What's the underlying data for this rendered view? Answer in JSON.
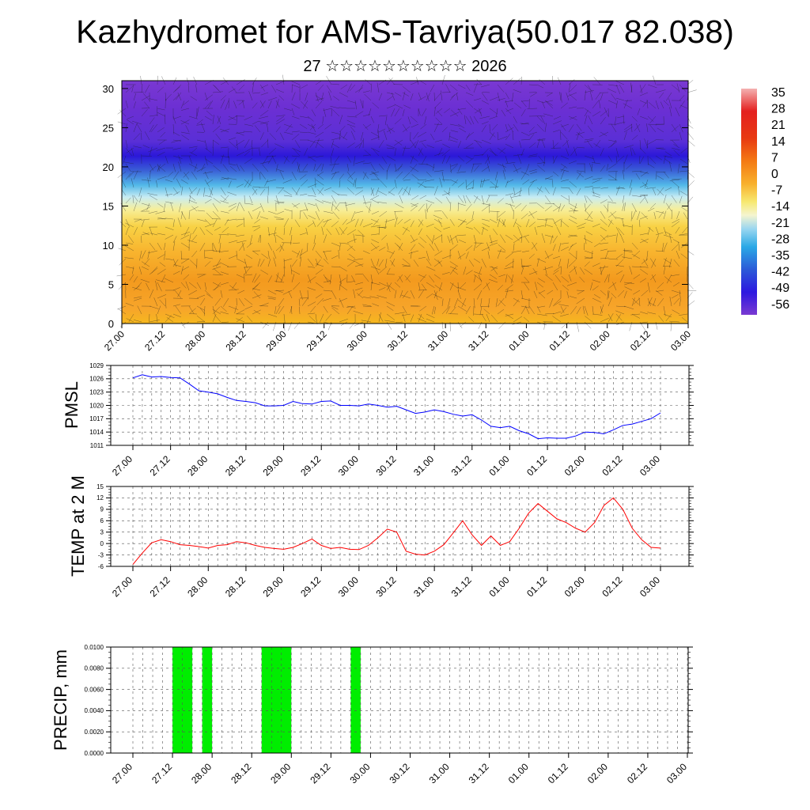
{
  "title": "Kazhydromet for AMS-Tavriya(50.017 82.038)",
  "subtitle": "27 ☆☆☆☆☆☆☆☆☆☆ 2026",
  "time_labels": [
    "27.00",
    "27.12",
    "28.00",
    "28.12",
    "29.00",
    "29.12",
    "30.00",
    "30.12",
    "31.00",
    "31.12",
    "01.00",
    "01.12",
    "02.00",
    "02.12",
    "03.00"
  ],
  "colors": {
    "pmsl_line": "#0000ff",
    "temp_line": "#ff0000",
    "precip_bar": "#00ee00",
    "grid": "#555555"
  },
  "chart_data": [
    {
      "type": "heatmap",
      "name": "cross-section",
      "ylim": [
        0,
        31
      ],
      "yticks": [
        0,
        5,
        10,
        15,
        20,
        25,
        30
      ],
      "xlim": [
        0,
        14
      ],
      "colorbar_labels": [
        "35",
        "28",
        "21",
        "14",
        "7",
        "0",
        "-7",
        "-14",
        "-21",
        "-28",
        "-35",
        "-42",
        "-49",
        "-56"
      ],
      "colorbar_values": [
        35,
        28,
        21,
        14,
        7,
        0,
        -7,
        -14,
        -21,
        -28,
        -35,
        -42,
        -49,
        -56
      ]
    },
    {
      "type": "line",
      "name": "PMSL",
      "ylabel": "PMSL",
      "ylim": [
        1011,
        1029
      ],
      "yticks": [
        "1011",
        "1014",
        "1017",
        "1020",
        "1023",
        "1026",
        "1029"
      ],
      "xlim": [
        0,
        14
      ],
      "x": [
        0,
        0.25,
        0.5,
        0.75,
        1,
        1.25,
        1.5,
        1.75,
        2,
        2.25,
        2.5,
        2.75,
        3,
        3.25,
        3.5,
        3.75,
        4,
        4.25,
        4.5,
        4.75,
        5,
        5.25,
        5.5,
        5.75,
        6,
        6.25,
        6.5,
        6.75,
        7,
        7.25,
        7.5,
        7.75,
        8,
        8.25,
        8.5,
        8.75,
        9,
        9.25,
        9.5,
        9.75,
        10,
        10.25,
        10.5,
        10.75,
        11,
        11.25,
        11.5,
        11.75,
        12,
        12.25,
        12.5,
        12.75,
        13,
        13.25,
        13.5,
        13.75,
        14
      ],
      "values": [
        1026.2,
        1026.9,
        1026.4,
        1026.5,
        1026.3,
        1026.2,
        1024.8,
        1023.3,
        1023,
        1022.6,
        1021.8,
        1021.1,
        1020.9,
        1020.6,
        1019.9,
        1019.9,
        1020,
        1020.9,
        1020.4,
        1020.3,
        1020.9,
        1021,
        1020,
        1020,
        1019.9,
        1020.3,
        1020,
        1019.6,
        1019.8,
        1019,
        1018.2,
        1018.5,
        1019,
        1018.6,
        1018,
        1017.6,
        1017.9,
        1016.7,
        1015.3,
        1015,
        1015.3,
        1014.3,
        1013.6,
        1012.5,
        1012.7,
        1012.6,
        1012.6,
        1013.1,
        1014,
        1013.9,
        1013.6,
        1014.5,
        1015.5,
        1015.8,
        1016.4,
        1017,
        1018.3
      ]
    },
    {
      "type": "line",
      "name": "TEMP at 2 M",
      "ylabel": "TEMP at 2 M",
      "ylim": [
        -6,
        15
      ],
      "yticks": [
        "-6",
        "-3",
        "0",
        "3",
        "6",
        "9",
        "12",
        "15"
      ],
      "xlim": [
        0,
        14
      ],
      "x": [
        0,
        0.25,
        0.5,
        0.75,
        1,
        1.25,
        1.5,
        1.75,
        2,
        2.25,
        2.5,
        2.75,
        3,
        3.25,
        3.5,
        3.75,
        4,
        4.25,
        4.5,
        4.75,
        5,
        5.25,
        5.5,
        5.75,
        6,
        6.25,
        6.5,
        6.75,
        7,
        7.25,
        7.5,
        7.75,
        8,
        8.25,
        8.5,
        8.75,
        9,
        9.25,
        9.5,
        9.75,
        10,
        10.25,
        10.5,
        10.75,
        11,
        11.25,
        11.5,
        11.75,
        12,
        12.25,
        12.5,
        12.75,
        13,
        13.25,
        13.5,
        13.75,
        14
      ],
      "values": [
        -5.5,
        -2.5,
        0.2,
        1,
        0.5,
        -0.3,
        -0.5,
        -0.8,
        -1.2,
        -0.5,
        -0.3,
        0.5,
        0.2,
        -0.5,
        -1,
        -1.3,
        -1.5,
        -1,
        0,
        1.2,
        -0.5,
        -1.3,
        -1,
        -1.5,
        -1.6,
        -0.5,
        1.5,
        3.8,
        3,
        -2,
        -2.8,
        -3,
        -2,
        -0.3,
        2.8,
        6,
        2.3,
        -0.5,
        2,
        -0.5,
        0.5,
        4,
        8,
        10.5,
        8.5,
        6.5,
        5.5,
        4,
        3,
        5.5,
        10,
        12,
        9,
        4,
        1,
        -1,
        -1.2
      ]
    },
    {
      "type": "bar",
      "name": "PRECIP, mm",
      "ylabel": "PRECIP, mm",
      "ylim": [
        0,
        0.01
      ],
      "yticks": [
        "0.0000",
        "0.0020",
        "0.0040",
        "0.0060",
        "0.0080",
        "0.0100"
      ],
      "xlim": [
        0,
        14
      ],
      "bars": [
        {
          "x0": 1.0,
          "x1": 1.5,
          "value": 0.01
        },
        {
          "x0": 1.75,
          "x1": 2.0,
          "value": 0.01
        },
        {
          "x0": 3.25,
          "x1": 4.0,
          "value": 0.01
        },
        {
          "x0": 5.5,
          "x1": 5.75,
          "value": 0.01
        }
      ]
    }
  ]
}
